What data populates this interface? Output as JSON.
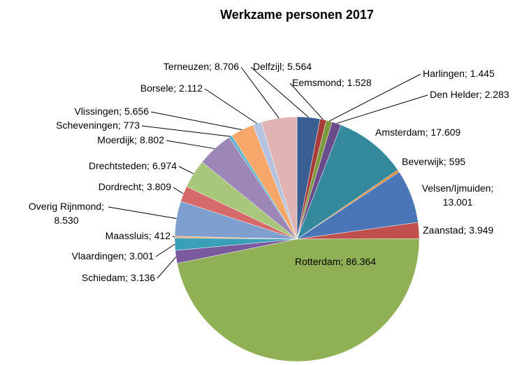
{
  "chart_data": {
    "type": "pie",
    "title": "Werkzame personen 2017",
    "labels": [
      "Delfzijl; 5.564",
      "Eemsmond; 1.528",
      "Harlingen; 1.445",
      "Den Helder; 2.283",
      "Amsterdam; 17.609",
      "Beverwijk; 595",
      "Velsen/Ijmuiden;\n13.001",
      "Zaanstad; 3.949",
      "Rotterdam; 86.364",
      "Schiedam; 3.136",
      "Vlaardingen; 3.001",
      "Maassluis; 412",
      "Overig Rijnmond;\n8.530",
      "Dordrecht; 3.809",
      "Drechtsteden; 6.974",
      "Moerdijk; 8.802",
      "Scheveningen; 773",
      "Vlissingen; 5.656",
      "Borsele; 2.112",
      "Terneuzen; 8.706"
    ],
    "values": [
      5564,
      1528,
      1445,
      2283,
      17609,
      595,
      13001,
      3949,
      86364,
      3136,
      3001,
      412,
      8530,
      3809,
      6974,
      8802,
      773,
      5656,
      2112,
      8706
    ],
    "colors": [
      "#3b5f93",
      "#a83a38",
      "#7f9a3e",
      "#6a4c8c",
      "#348a9c",
      "#d98a3c",
      "#4a76b8",
      "#c0504d",
      "#8fb054",
      "#7a5a9e",
      "#3aa0b8",
      "#f4a460",
      "#7f9fcf",
      "#d66a6a",
      "#a9c77a",
      "#9d86b8",
      "#5ab4cc",
      "#f7a76a",
      "#b4c4e0",
      "#e0b4b4"
    ]
  }
}
